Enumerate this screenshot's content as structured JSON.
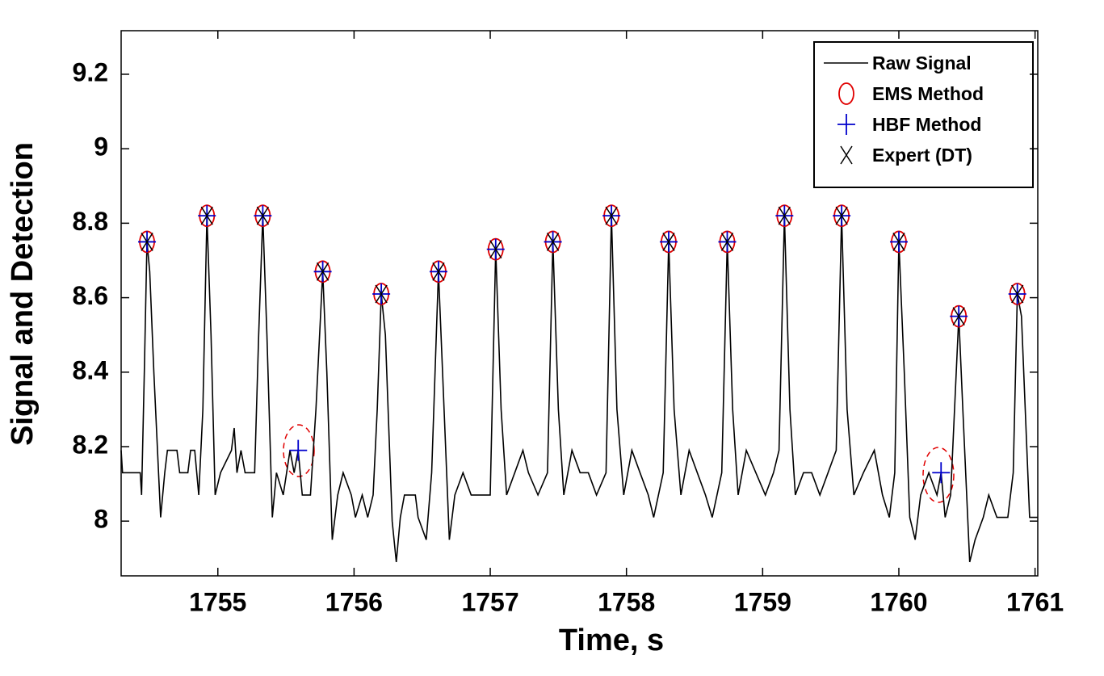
{
  "chart_data": {
    "type": "line",
    "xlabel": "Time, s",
    "ylabel": "Signal and Detection",
    "xlim": [
      1754.29,
      1761.02
    ],
    "ylim": [
      7.853,
      9.317
    ],
    "xticks": [
      1755,
      1756,
      1757,
      1758,
      1759,
      1760,
      1761
    ],
    "yticks": [
      8,
      8.2,
      8.4,
      8.6,
      8.8,
      9,
      9.2
    ],
    "legend": "upper right",
    "series": [
      {
        "name": "Raw Signal",
        "color": "#000000",
        "marker": "none",
        "x": [
          1754.29,
          1754.3,
          1754.43,
          1754.44,
          1754.46,
          1754.48,
          1754.5,
          1754.53,
          1754.58,
          1754.61,
          1754.63,
          1754.7,
          1754.72,
          1754.78,
          1754.8,
          1754.83,
          1754.86,
          1754.89,
          1754.92,
          1754.95,
          1754.98,
          1755.02,
          1755.1,
          1755.12,
          1755.14,
          1755.17,
          1755.2,
          1755.23,
          1755.27,
          1755.3,
          1755.33,
          1755.36,
          1755.4,
          1755.43,
          1755.48,
          1755.53,
          1755.56,
          1755.59,
          1755.62,
          1755.68,
          1755.72,
          1755.77,
          1755.8,
          1755.84,
          1755.88,
          1755.92,
          1755.98,
          1756.01,
          1756.06,
          1756.1,
          1756.14,
          1756.17,
          1756.2,
          1756.23,
          1756.28,
          1756.31,
          1756.34,
          1756.37,
          1756.45,
          1756.47,
          1756.53,
          1756.57,
          1756.62,
          1756.65,
          1756.7,
          1756.74,
          1756.8,
          1756.86,
          1757.0,
          1757.04,
          1757.08,
          1757.12,
          1757.18,
          1757.24,
          1757.28,
          1757.35,
          1757.42,
          1757.46,
          1757.5,
          1757.54,
          1757.6,
          1757.66,
          1757.72,
          1757.78,
          1757.85,
          1757.89,
          1757.93,
          1757.98,
          1758.04,
          1758.1,
          1758.16,
          1758.2,
          1758.27,
          1758.31,
          1758.35,
          1758.4,
          1758.46,
          1758.52,
          1758.58,
          1758.63,
          1758.7,
          1758.74,
          1758.78,
          1758.82,
          1758.88,
          1758.95,
          1759.02,
          1759.08,
          1759.12,
          1759.16,
          1759.2,
          1759.24,
          1759.3,
          1759.36,
          1759.42,
          1759.48,
          1759.54,
          1759.58,
          1759.62,
          1759.67,
          1759.74,
          1759.82,
          1759.88,
          1759.93,
          1759.97,
          1760.0,
          1760.04,
          1760.08,
          1760.12,
          1760.16,
          1760.22,
          1760.28,
          1760.31,
          1760.34,
          1760.38,
          1760.44,
          1760.47,
          1760.52,
          1760.56,
          1760.62,
          1760.66,
          1760.72,
          1760.8,
          1760.84,
          1760.87,
          1760.9,
          1760.96,
          1761.02
        ],
        "values": [
          8.19,
          8.13,
          8.13,
          8.07,
          8.4,
          8.75,
          8.67,
          8.4,
          8.01,
          8.13,
          8.19,
          8.19,
          8.13,
          8.13,
          8.19,
          8.19,
          8.07,
          8.3,
          8.82,
          8.5,
          8.07,
          8.13,
          8.19,
          8.25,
          8.13,
          8.19,
          8.13,
          8.13,
          8.13,
          8.5,
          8.82,
          8.5,
          8.01,
          8.13,
          8.07,
          8.19,
          8.13,
          8.19,
          8.07,
          8.07,
          8.3,
          8.67,
          8.4,
          7.95,
          8.07,
          8.13,
          8.07,
          8.01,
          8.07,
          8.01,
          8.07,
          8.3,
          8.61,
          8.5,
          8.0,
          7.89,
          8.01,
          8.07,
          8.07,
          8.01,
          7.95,
          8.13,
          8.67,
          8.4,
          7.95,
          8.07,
          8.13,
          8.07,
          8.07,
          8.73,
          8.3,
          8.07,
          8.13,
          8.19,
          8.13,
          8.07,
          8.13,
          8.75,
          8.3,
          8.07,
          8.19,
          8.13,
          8.13,
          8.07,
          8.13,
          8.82,
          8.3,
          8.07,
          8.19,
          8.13,
          8.07,
          8.01,
          8.13,
          8.75,
          8.3,
          8.07,
          8.19,
          8.13,
          8.07,
          8.01,
          8.13,
          8.75,
          8.3,
          8.07,
          8.19,
          8.13,
          8.07,
          8.13,
          8.19,
          8.82,
          8.3,
          8.07,
          8.13,
          8.13,
          8.07,
          8.13,
          8.19,
          8.82,
          8.3,
          8.07,
          8.13,
          8.19,
          8.07,
          8.01,
          8.13,
          8.75,
          8.4,
          8.01,
          7.95,
          8.07,
          8.13,
          8.07,
          8.13,
          8.01,
          8.07,
          8.55,
          8.3,
          7.89,
          7.95,
          8.01,
          8.07,
          8.01,
          8.01,
          8.13,
          8.61,
          8.55,
          8.01,
          8.01
        ]
      },
      {
        "name": "EMS Method",
        "color": "#e00000",
        "marker": "o",
        "x": [
          1754.48,
          1754.92,
          1755.33,
          1755.77,
          1756.2,
          1756.62,
          1757.04,
          1757.46,
          1757.89,
          1758.31,
          1758.74,
          1759.16,
          1759.58,
          1760.0,
          1760.44,
          1760.87
        ],
        "values": [
          8.75,
          8.82,
          8.82,
          8.67,
          8.61,
          8.67,
          8.73,
          8.75,
          8.82,
          8.75,
          8.75,
          8.82,
          8.82,
          8.75,
          8.55,
          8.61
        ]
      },
      {
        "name": "HBF Method",
        "color": "#0000cc",
        "marker": "+",
        "x": [
          1754.48,
          1754.92,
          1755.33,
          1755.59,
          1755.77,
          1756.2,
          1756.62,
          1757.04,
          1757.46,
          1757.89,
          1758.31,
          1758.74,
          1759.16,
          1759.58,
          1760.0,
          1760.31,
          1760.44,
          1760.87
        ],
        "values": [
          8.75,
          8.82,
          8.82,
          8.19,
          8.67,
          8.61,
          8.67,
          8.73,
          8.75,
          8.82,
          8.75,
          8.75,
          8.82,
          8.82,
          8.75,
          8.13,
          8.55,
          8.61
        ]
      },
      {
        "name": "Expert (DT)",
        "color": "#000000",
        "marker": "x",
        "x": [
          1754.48,
          1754.92,
          1755.33,
          1755.77,
          1756.2,
          1756.62,
          1757.04,
          1757.46,
          1757.89,
          1758.31,
          1758.74,
          1759.16,
          1759.58,
          1760.0,
          1760.44,
          1760.87
        ],
        "values": [
          8.75,
          8.82,
          8.82,
          8.67,
          8.61,
          8.67,
          8.73,
          8.75,
          8.82,
          8.75,
          8.75,
          8.82,
          8.82,
          8.75,
          8.55,
          8.61
        ]
      }
    ]
  }
}
